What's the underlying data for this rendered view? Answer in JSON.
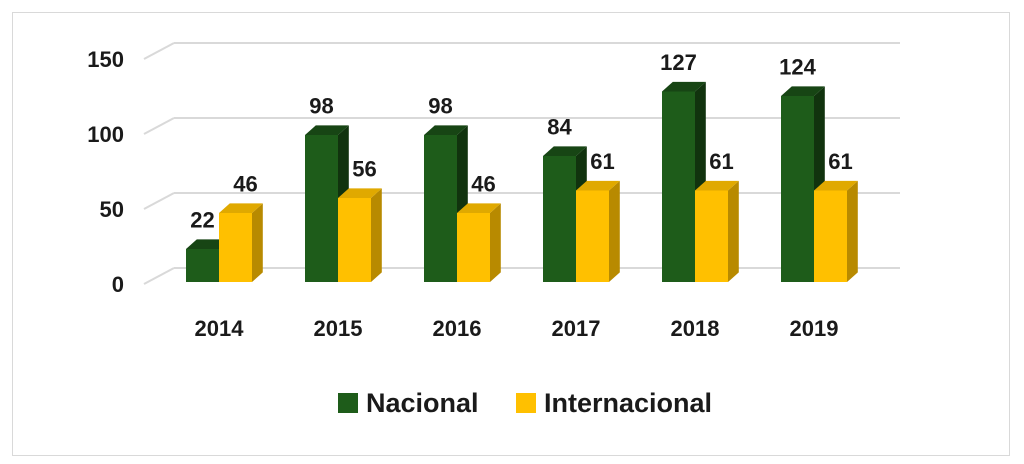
{
  "chart_data": {
    "type": "bar",
    "categories": [
      "2014",
      "2015",
      "2016",
      "2017",
      "2018",
      "2019"
    ],
    "series": [
      {
        "name": "Nacional",
        "values": [
          22,
          98,
          98,
          84,
          127,
          124
        ],
        "color": "#1e5c1a"
      },
      {
        "name": "Internacional",
        "values": [
          46,
          56,
          46,
          61,
          61,
          61
        ],
        "color": "#ffc000"
      }
    ],
    "yticks": [
      0,
      50,
      100,
      150
    ],
    "ylim": [
      0,
      150
    ],
    "grid": true,
    "legend_position": "bottom",
    "style": "3d-column"
  }
}
